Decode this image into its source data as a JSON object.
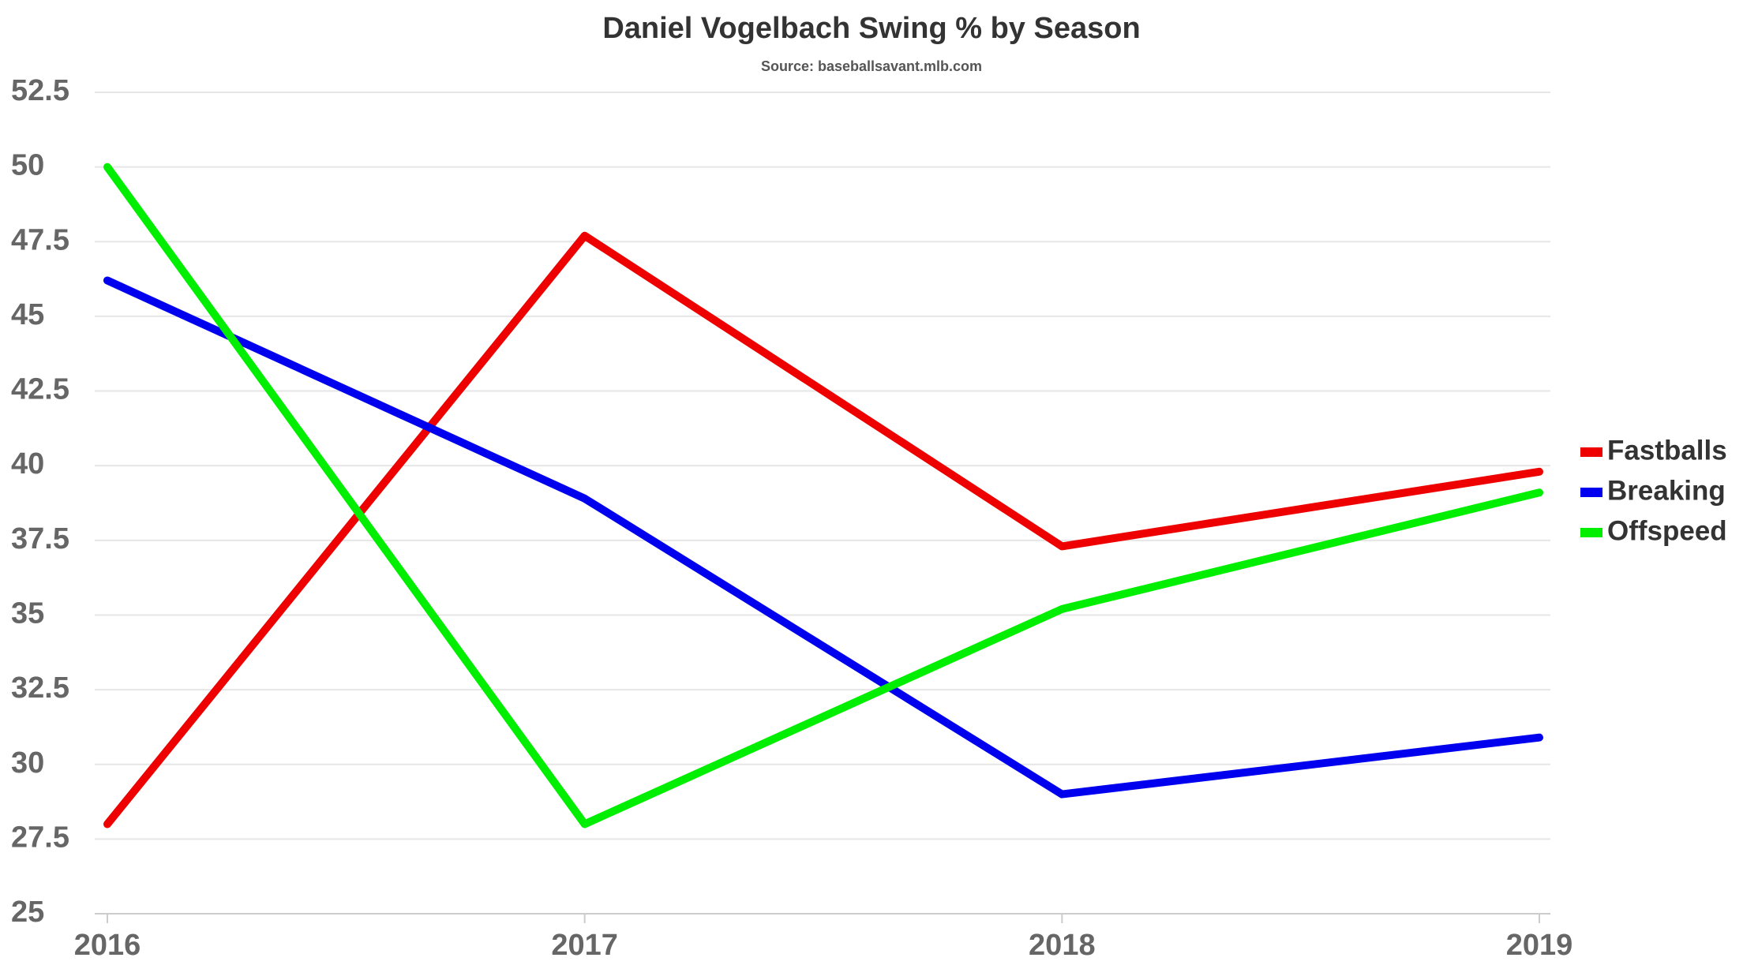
{
  "chart_data": {
    "type": "line",
    "title": "Daniel Vogelbach Swing % by Season",
    "subtitle": "Source: baseballsavant.mlb.com",
    "x": [
      2016,
      2017,
      2018,
      2019
    ],
    "xlim": [
      2016,
      2019
    ],
    "xticks": [
      2016,
      2017,
      2018,
      2019
    ],
    "ylim": [
      25,
      52.5
    ],
    "yticks": [
      25,
      27.5,
      30,
      32.5,
      35,
      37.5,
      40,
      42.5,
      45,
      47.5,
      50,
      52.5
    ],
    "grid": true,
    "legend": "right",
    "series": [
      {
        "name": "Fastballs",
        "color": "#ee0000",
        "values": [
          28.0,
          47.7,
          37.3,
          39.8
        ]
      },
      {
        "name": "Breaking",
        "color": "#0000ee",
        "values": [
          46.2,
          38.9,
          29.0,
          30.9
        ]
      },
      {
        "name": "Offspeed",
        "color": "#00ee00",
        "values": [
          50.0,
          28.0,
          35.2,
          39.1
        ]
      }
    ]
  }
}
